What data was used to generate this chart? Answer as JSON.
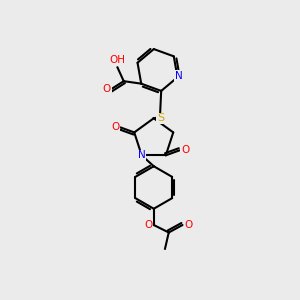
{
  "background_color": "#ebebeb",
  "bond_color": "#000000",
  "atom_colors": {
    "O": "#ff0000",
    "N": "#0000ff",
    "S": "#ccaa00",
    "H": "#4a9090",
    "C": "#000000"
  },
  "font_size": 7.5,
  "line_width": 1.5
}
